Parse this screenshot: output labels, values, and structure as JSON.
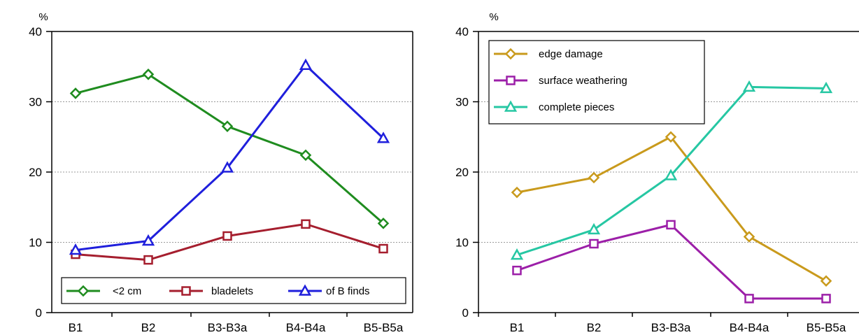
{
  "chart_data": [
    {
      "type": "line",
      "ylabel": "%",
      "ylim": [
        0,
        40
      ],
      "yticks": [
        0,
        10,
        20,
        30,
        40
      ],
      "categories": [
        "B1",
        "B2",
        "B3-B3a",
        "B4-B4a",
        "B5-B5a"
      ],
      "grid": "horizontal dashed",
      "legend_position": "bottom",
      "series": [
        {
          "name": "<2 cm",
          "marker": "diamond",
          "color": "#1f8c1f",
          "values": [
            31.2,
            33.9,
            26.5,
            22.4,
            12.7
          ]
        },
        {
          "name": "bladelets",
          "marker": "square",
          "color": "#a51e2e",
          "values": [
            8.3,
            7.5,
            10.9,
            12.6,
            9.1
          ]
        },
        {
          "name": "of B finds",
          "marker": "triangle",
          "color": "#1f1fdc",
          "values": [
            8.9,
            10.2,
            20.6,
            35.2,
            24.8
          ]
        }
      ]
    },
    {
      "type": "line",
      "ylabel": "%",
      "ylim": [
        0,
        40
      ],
      "yticks": [
        0,
        10,
        20,
        30,
        40
      ],
      "categories": [
        "B1",
        "B2",
        "B3-B3a",
        "B4-B4a",
        "B5-B5a"
      ],
      "grid": "horizontal dashed",
      "legend_position": "top-left",
      "series": [
        {
          "name": "edge damage",
          "marker": "diamond",
          "color": "#c99a1c",
          "values": [
            17.1,
            19.2,
            25.0,
            10.8,
            4.5
          ]
        },
        {
          "name": "surface weathering",
          "marker": "square",
          "color": "#9c1fa8",
          "values": [
            6.0,
            9.8,
            12.5,
            2.0,
            2.0
          ]
        },
        {
          "name": "complete pieces",
          "marker": "triangle",
          "color": "#26c7a3",
          "values": [
            8.2,
            11.8,
            19.5,
            32.1,
            31.9
          ]
        }
      ]
    }
  ]
}
